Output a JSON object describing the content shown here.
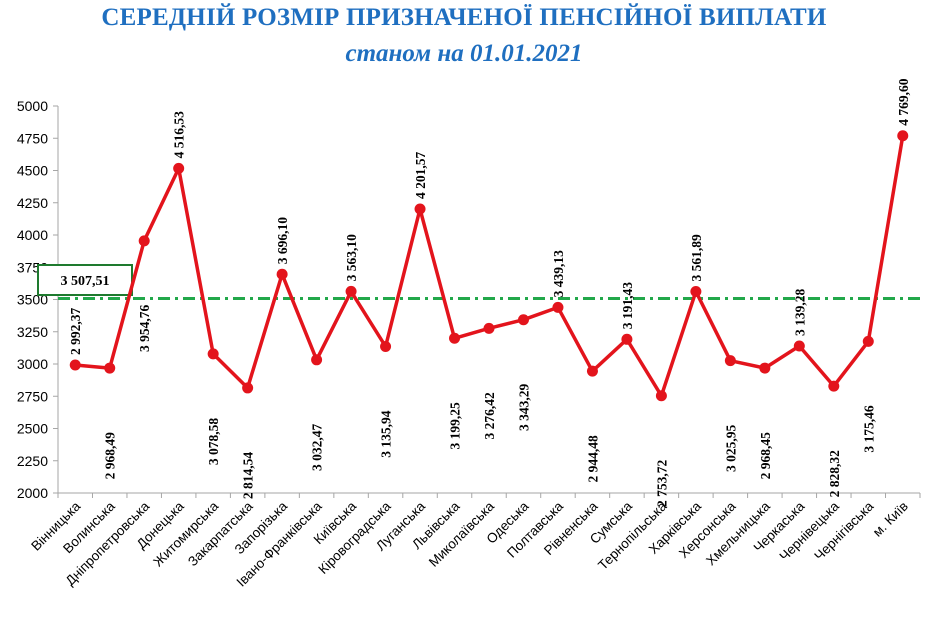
{
  "title": "СЕРЕДНІЙ РОЗМІР ПРИЗНАЧЕНОЇ ПЕНСІЙНОЇ ВИПЛАТИ",
  "subtitle": "станом на 01.01.2021",
  "colors": {
    "title": "#1f6fc0",
    "series": "#e3141c",
    "average": "#22a84a",
    "average_box": "#1e7a2e",
    "axis": "#a6a6a6"
  },
  "chart_data": {
    "type": "line",
    "title": "СЕРЕДНІЙ РОЗМІР ПРИЗНАЧЕНОЇ ПЕНСІЙНОЇ ВИПЛАТИ",
    "subtitle": "станом на 01.01.2021",
    "xlabel": "",
    "ylabel": "",
    "ylim": [
      2000,
      5000
    ],
    "yticks": [
      "2000",
      "2250",
      "2500",
      "2750",
      "3000",
      "3250",
      "3500",
      "3750",
      "4000",
      "4250",
      "4500",
      "4750",
      "5000"
    ],
    "grid": false,
    "categories": [
      "Вінницька",
      "Волинська",
      "Дніпропетровська",
      "Донецька",
      "Житомирська",
      "Закарпатська",
      "Запорізька",
      "Івано-Франківська",
      "Київська",
      "Кіровоградська",
      "Луганська",
      "Львівська",
      "Миколаївська",
      "Одеська",
      "Полтавська",
      "Рівненська",
      "Сумська",
      "Тернопільська",
      "Харківська",
      "Херсонська",
      "Хмельницька",
      "Черкаська",
      "Чернівецька",
      "Чернігівська",
      "м. Київ"
    ],
    "series": [
      {
        "values": [
          2992.37,
          2968.49,
          3954.76,
          4516.53,
          3078.58,
          2814.54,
          3696.1,
          3032.47,
          3563.1,
          3135.94,
          4201.57,
          3199.25,
          3276.42,
          3343.29,
          3439.13,
          2944.48,
          3191.43,
          2753.72,
          3561.89,
          3025.95,
          2968.45,
          3139.28,
          2828.32,
          3175.46,
          4769.6
        ],
        "labels": [
          "2 992,37",
          "2 968,49",
          "3 954,76",
          "4 516,53",
          "3 078,58",
          "2 814,54",
          "3 696,10",
          "3 032,47",
          "3 563,10",
          "3 135,94",
          "4 201,57",
          "3 199,25",
          "3 276,42",
          "3 343,29",
          "3 439,13",
          "2 944,48",
          "3 191,43",
          "2 753,72",
          "3 561,89",
          "3 025,95",
          "2 968,45",
          "3 139,28",
          "2 828,32",
          "3 175,46",
          "4 769,60"
        ]
      }
    ],
    "average": {
      "value": 3507.51,
      "label": "3 507,51"
    }
  }
}
